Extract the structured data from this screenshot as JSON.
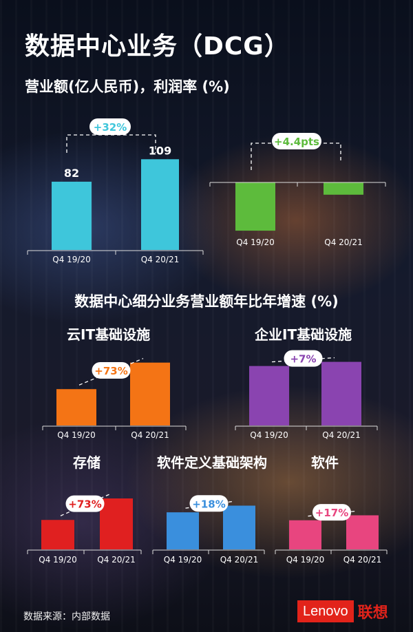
{
  "title": "数据中心业务（DCG）",
  "subtitle": "营业额(亿人民币)，利润率 (%)",
  "section_title": "数据中心细分业务营业额年比年增速 (%)",
  "source": "数据来源：内部数据",
  "logo": {
    "brand": "Lenovo",
    "cn": "联想",
    "color": "#e2231a"
  },
  "chart_data": [
    {
      "type": "bar",
      "title": "",
      "categories": [
        "Q4 19/20",
        "Q4 20/21"
      ],
      "values": [
        82,
        109
      ],
      "data_labels": [
        "82",
        "109"
      ],
      "change_label": "+32%",
      "color": "#3ec6db",
      "change_color": "#3ec6db"
    },
    {
      "type": "bar",
      "title": "",
      "note": "profit margin shown as negative bars",
      "categories": [
        "Q4 19/20",
        "Q4 20/21"
      ],
      "values": [
        -5.9,
        -1.5
      ],
      "change_label": "+4.4pts",
      "color": "#5dbb3c",
      "change_color": "#5dbb3c"
    },
    {
      "type": "bar",
      "title": "云IT基础设施",
      "categories": [
        "Q4 19/20",
        "Q4 20/21"
      ],
      "values": [
        1.0,
        1.73
      ],
      "change_label": "+73%",
      "color": "#f47415",
      "change_color": "#f47415"
    },
    {
      "type": "bar",
      "title": "企业IT基础设施",
      "categories": [
        "Q4 19/20",
        "Q4 20/21"
      ],
      "values": [
        1.0,
        1.07
      ],
      "change_label": "+7%",
      "color": "#8a44b0",
      "change_color": "#8a44b0"
    },
    {
      "type": "bar",
      "title": "存储",
      "categories": [
        "Q4 19/20",
        "Q4 20/21"
      ],
      "values": [
        1.0,
        1.73
      ],
      "change_label": "+73%",
      "color": "#e02020",
      "change_color": "#e02020"
    },
    {
      "type": "bar",
      "title": "软件定义基础架构",
      "categories": [
        "Q4 19/20",
        "Q4 20/21"
      ],
      "values": [
        1.0,
        1.18
      ],
      "change_label": "+18%",
      "color": "#3a8fdd",
      "change_color": "#3a8fdd"
    },
    {
      "type": "bar",
      "title": "软件",
      "categories": [
        "Q4 19/20",
        "Q4 20/21"
      ],
      "values": [
        1.0,
        1.17
      ],
      "change_label": "+17%",
      "color": "#e8457f",
      "change_color": "#e8457f"
    }
  ]
}
